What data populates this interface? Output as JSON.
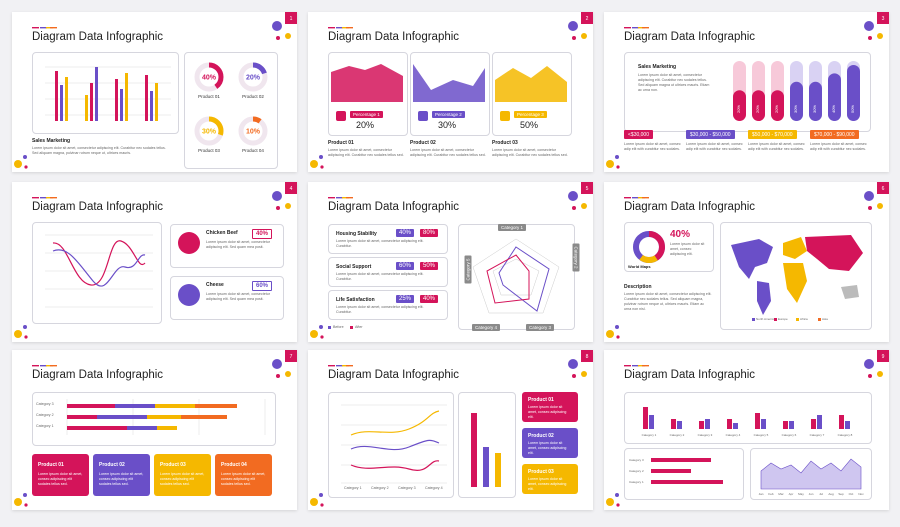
{
  "slides": [
    {
      "number": "1",
      "title": "Diagram Data Infographic",
      "heading": "Sales Marketing",
      "body": "Lorem ipsum dolor sit amet, consectetur adipiscing elit. Curabitur nec sodales tellus. Sed aliquam magna, pulvinar rutrum neque ut, ultrices mauris.",
      "donuts": [
        {
          "value": 40,
          "label": "40%",
          "name": "Product 01",
          "color": "#d4145a"
        },
        {
          "value": 20,
          "label": "20%",
          "name": "Product 02",
          "color": "#6a4fc8"
        },
        {
          "value": 30,
          "label": "30%",
          "name": "Product 03",
          "color": "#f5b800"
        },
        {
          "value": 10,
          "label": "10%",
          "name": "Product 04",
          "color": "#f26b21"
        }
      ]
    },
    {
      "number": "2",
      "title": "Diagram Data Infographic",
      "body": "Lorem ipsum dolor sit amet, consectetur adipiscing elit. Curabitur nec sodales tellus sed.",
      "cards": [
        {
          "tag": "Percentage 1",
          "label": "20%",
          "name": "Product 01"
        },
        {
          "tag": "Percentage 2",
          "label": "30%",
          "name": "Product 02"
        },
        {
          "tag": "Percentage 3",
          "label": "50%",
          "name": "Product 03"
        }
      ]
    },
    {
      "number": "3",
      "title": "Diagram Data Infographic",
      "heading": "Sales Marketing",
      "body": "Lorem ipsum dolor sit amet, consectetur adipiscing elit. Curabitur nec sodales tellus. Sed aliquam magna ut ultrices mauris. Etiam ac urna non.",
      "pills": [
        {
          "value": 20,
          "label": "20%",
          "color": "#d4145a"
        },
        {
          "value": 20,
          "label": "20%",
          "color": "#d4145a"
        },
        {
          "value": 20,
          "label": "20%",
          "color": "#d4145a"
        },
        {
          "value": 30,
          "label": "30%",
          "color": "#6a4fc8"
        },
        {
          "value": 30,
          "label": "30%",
          "color": "#6a4fc8"
        },
        {
          "value": 40,
          "label": "40%",
          "color": "#6a4fc8"
        },
        {
          "value": 50,
          "label": "50%",
          "color": "#6a4fc8"
        }
      ],
      "ranges": [
        "<$30,000",
        "$30,000 - $50,000",
        "$50,000 - $70,000",
        "$70,000 - $90,000"
      ],
      "small": "Lorem ipsum dolor sit amet, consec adip elit with curabitur nec sodales."
    },
    {
      "number": "4",
      "title": "Diagram Data Infographic",
      "body": "Lorem ipsum dolor sit amet, consectetur adipiscing elit. Sed quam mea posit.",
      "items": [
        {
          "name": "Chicken Beef",
          "label": "40%"
        },
        {
          "name": "Cheese",
          "label": "60%"
        }
      ]
    },
    {
      "number": "5",
      "title": "Diagram Data Infographic",
      "body": "Lorem ipsum dolor sit amet, consectetur adipiscing elit. Curabitur.",
      "rows": [
        {
          "name": "Housing Stability",
          "before": "40%",
          "after": "80%"
        },
        {
          "name": "Social Support",
          "before": "60%",
          "after": "50%"
        },
        {
          "name": "Life Satisfaction",
          "before": "25%",
          "after": "40%"
        }
      ],
      "legend": [
        "Before",
        "After"
      ],
      "axes": [
        "Category 1",
        "Category 2",
        "Category 3",
        "Category 4",
        "Category 5"
      ]
    },
    {
      "number": "6",
      "title": "Diagram Data Infographic",
      "stat": "40%",
      "statName": "World Maps",
      "small": "Lorem ipsum dolor sit amet, consec adipiscing elit.",
      "heading": "Description",
      "body": "Lorem ipsum dolor sit amet, consectetur adipiscing elit. Curabitur nec sodales tellus. Sed aliquam magna, pulvinar rutrum neque ut, ultrices mauris. Etiam ac urna non nisl.",
      "legend": [
        "North America",
        "Europe",
        "Africa",
        "Asia"
      ]
    },
    {
      "number": "7",
      "title": "Diagram Data Infographic",
      "categories": [
        "Category 3",
        "Category 2",
        "Category 1"
      ],
      "cards": [
        {
          "name": "Product 01",
          "color": "#d4145a"
        },
        {
          "name": "Product 02",
          "color": "#6a4fc8"
        },
        {
          "name": "Product 03",
          "color": "#f5b800"
        },
        {
          "name": "Product 04",
          "color": "#f26b21"
        }
      ],
      "body": "Lorem ipsum dolor sit amet, consec adipiscing elit sodales tellus sed."
    },
    {
      "number": "8",
      "title": "Diagram Data Infographic",
      "categories": [
        "Category 1",
        "Category 2",
        "Category 3",
        "Category 4"
      ],
      "cards": [
        {
          "name": "Product 01",
          "color": "#d4145a"
        },
        {
          "name": "Product 02",
          "color": "#6a4fc8"
        },
        {
          "name": "Product 03",
          "color": "#f5b800"
        }
      ],
      "body": "Lorem ipsum dolor sit amet, consec adipiscing elit."
    },
    {
      "number": "9",
      "title": "Diagram Data Infographic",
      "categories": [
        "Category 1",
        "Category 2",
        "Category 3",
        "Category 4",
        "Category 5",
        "Category 6",
        "Category 7",
        "Category 8"
      ],
      "hcategories": [
        "Category 3",
        "Category 2",
        "Category 1"
      ],
      "months": [
        "Jan",
        "Feb",
        "Mar",
        "Apr",
        "May",
        "Jun",
        "Jul",
        "Aug",
        "Sep",
        "Oct",
        "Nov"
      ]
    }
  ]
}
